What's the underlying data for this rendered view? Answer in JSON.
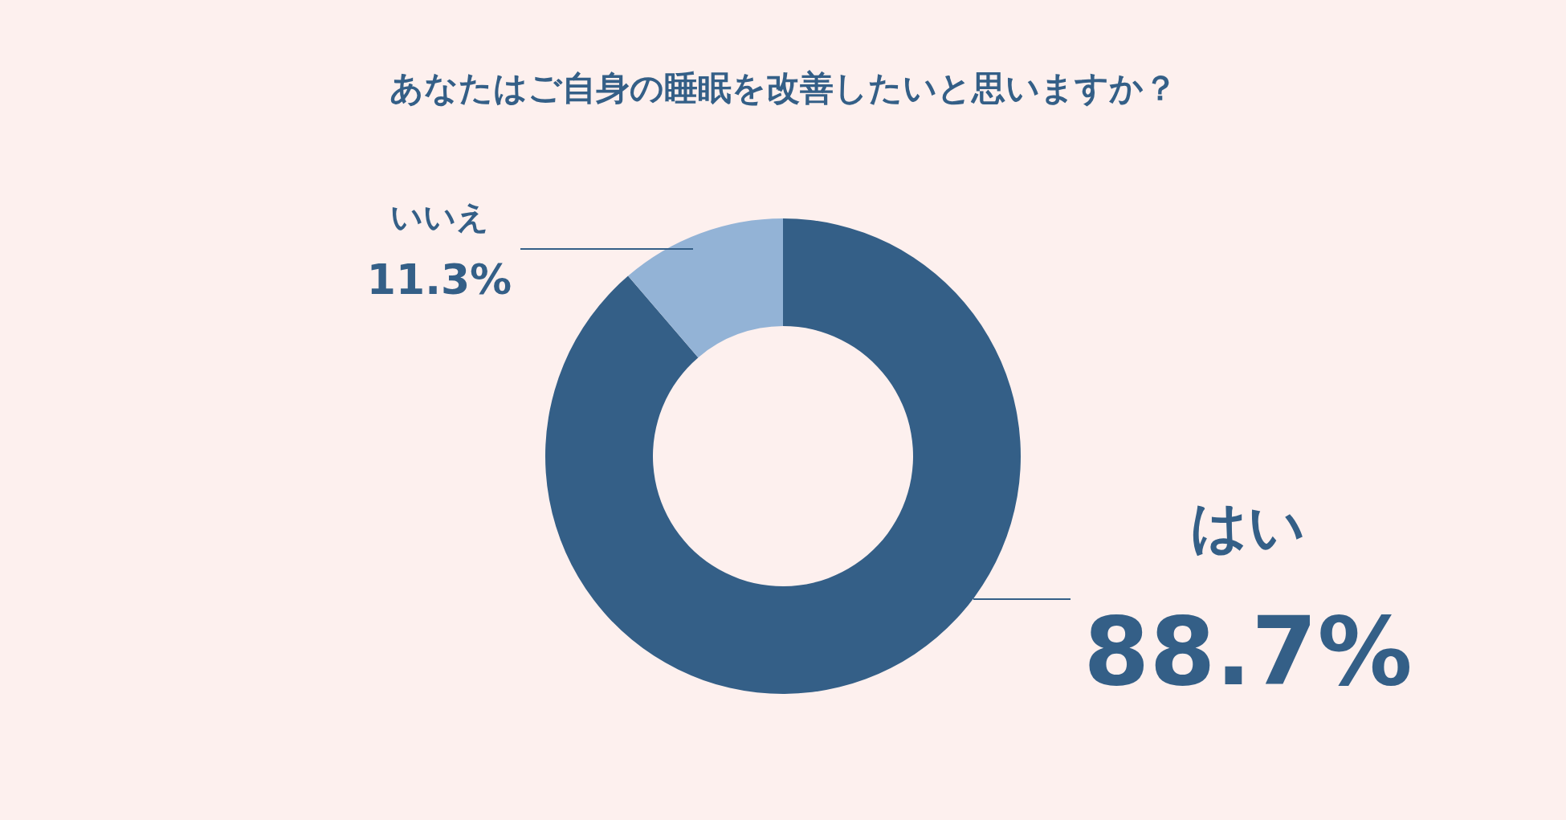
{
  "chart_data": {
    "type": "donut",
    "title": "あなたはご自身の睡眠を改善したいと思いますか？",
    "categories": [
      "はい",
      "いいえ"
    ],
    "values": [
      88.7,
      11.3
    ],
    "colors": [
      "#345f87",
      "#93b3d6"
    ],
    "value_labels": [
      "88.7%",
      "11.3%"
    ]
  }
}
